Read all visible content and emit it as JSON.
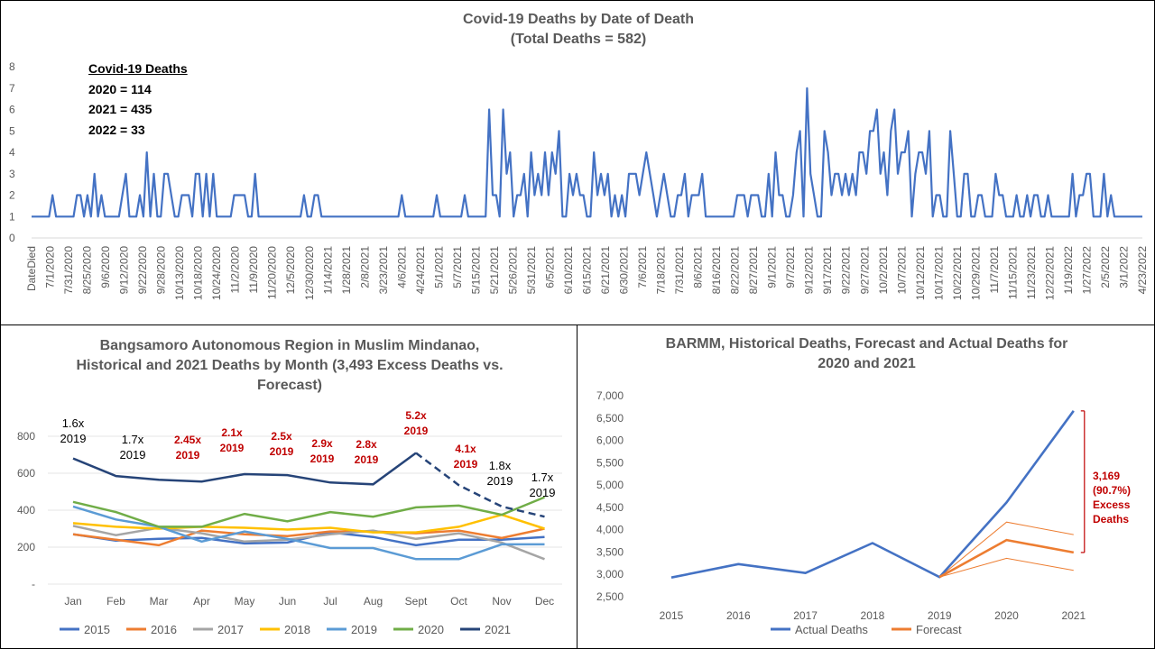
{
  "chart_data": [
    {
      "type": "line",
      "title": "Covid-19 Deaths by Date of Death",
      "subtitle": "(Total Deaths = 582)",
      "ylim": [
        0,
        8
      ],
      "y_ticks": [
        "0",
        "1",
        "2",
        "3",
        "4",
        "5",
        "6",
        "7",
        "8"
      ],
      "x_tick_labels": [
        "DateDied",
        "7/1/2020",
        "7/31/2020",
        "8/25/2020",
        "9/6/2020",
        "9/12/2020",
        "9/22/2020",
        "9/28/2020",
        "10/13/2020",
        "10/18/2020",
        "10/24/2020",
        "11/2/2020",
        "11/9/2020",
        "11/20/2020",
        "12/5/2020",
        "12/30/2020",
        "1/14/2021",
        "1/28/2021",
        "2/8/2021",
        "3/23/2021",
        "4/6/2021",
        "4/24/2021",
        "5/1/2021",
        "5/7/2021",
        "5/15/2021",
        "5/21/2021",
        "5/26/2021",
        "5/31/2021",
        "6/5/2021",
        "6/10/2021",
        "6/15/2021",
        "6/21/2021",
        "6/30/2021",
        "7/6/2021",
        "7/18/2021",
        "7/31/2021",
        "8/6/2021",
        "8/16/2021",
        "8/22/2021",
        "8/27/2021",
        "9/1/2021",
        "9/7/2021",
        "9/12/2021",
        "9/17/2021",
        "9/22/2021",
        "9/27/2021",
        "10/2/2021",
        "10/7/2021",
        "10/12/2021",
        "10/17/2021",
        "10/22/2021",
        "10/29/2021",
        "11/7/2021",
        "11/15/2021",
        "11/23/2021",
        "12/22/2021",
        "1/19/2022",
        "1/27/2022",
        "2/5/2022",
        "3/1/2022",
        "4/23/2022"
      ],
      "values": [
        1,
        1,
        1,
        1,
        1,
        1,
        2,
        1,
        1,
        1,
        1,
        1,
        1,
        2,
        2,
        1,
        2,
        1,
        3,
        1,
        2,
        1,
        1,
        1,
        1,
        1,
        2,
        3,
        1,
        1,
        1,
        2,
        1,
        4,
        1,
        3,
        1,
        1,
        3,
        3,
        2,
        1,
        1,
        2,
        2,
        2,
        1,
        3,
        3,
        1,
        3,
        1,
        3,
        1,
        1,
        1,
        1,
        1,
        2,
        2,
        2,
        2,
        1,
        1,
        3,
        1,
        1,
        1,
        1,
        1,
        1,
        1,
        1,
        1,
        1,
        1,
        1,
        1,
        2,
        1,
        1,
        2,
        2,
        1,
        1,
        1,
        1,
        1,
        1,
        1,
        1,
        1,
        1,
        1,
        1,
        1,
        1,
        1,
        1,
        1,
        1,
        1,
        1,
        1,
        1,
        1,
        2,
        1,
        1,
        1,
        1,
        1,
        1,
        1,
        1,
        1,
        2,
        1,
        1,
        1,
        1,
        1,
        1,
        1,
        2,
        1,
        1,
        1,
        1,
        1,
        1,
        6,
        2,
        2,
        1,
        6,
        3,
        4,
        1,
        2,
        2,
        3,
        1,
        4,
        2,
        3,
        2,
        4,
        2,
        4,
        3,
        5,
        1,
        1,
        3,
        2,
        3,
        2,
        2,
        1,
        1,
        4,
        2,
        3,
        2,
        3,
        1,
        2,
        1,
        2,
        1,
        3,
        3,
        3,
        2,
        3,
        4,
        3,
        2,
        1,
        2,
        3,
        2,
        1,
        1,
        2,
        2,
        3,
        1,
        2,
        2,
        2,
        3,
        1,
        1,
        1,
        1,
        1,
        1,
        1,
        1,
        1,
        2,
        2,
        2,
        1,
        2,
        2,
        2,
        1,
        1,
        3,
        1,
        4,
        2,
        2,
        1,
        1,
        2,
        4,
        5,
        1,
        7,
        3,
        2,
        1,
        1,
        5,
        4,
        2,
        3,
        3,
        2,
        3,
        2,
        3,
        2,
        4,
        4,
        3,
        5,
        5,
        6,
        3,
        4,
        2,
        5,
        6,
        3,
        4,
        4,
        5,
        1,
        3,
        4,
        4,
        3,
        5,
        1,
        2,
        2,
        1,
        1,
        5,
        3,
        1,
        1,
        3,
        3,
        1,
        1,
        2,
        2,
        1,
        1,
        1,
        3,
        2,
        2,
        1,
        1,
        1,
        2,
        1,
        1,
        2,
        1,
        2,
        2,
        1,
        1,
        2,
        1,
        1,
        1,
        1,
        1,
        1,
        3,
        1,
        2,
        2,
        3,
        3,
        1,
        1,
        1,
        3,
        1,
        2,
        1,
        1,
        1,
        1,
        1,
        1,
        1,
        1,
        1
      ],
      "annotation": {
        "title": "Covid-19 Deaths",
        "lines": [
          "2020 = 114",
          "2021 = 435",
          "2022 = 33"
        ]
      },
      "colors": {
        "line": "#4472c4"
      }
    },
    {
      "type": "line",
      "title_lines": [
        "Bangsamoro Autonomous Region in Muslim Mindanao,",
        "Historical and 2021 Deaths by Month (3,493 Excess Deaths vs.",
        "Forecast)"
      ],
      "categories": [
        "Jan",
        "Feb",
        "Mar",
        "Apr",
        "May",
        "Jun",
        "Jul",
        "Aug",
        "Sept",
        "Oct",
        "Nov",
        "Dec"
      ],
      "y_ticks": [
        "-",
        "200",
        "400",
        "600",
        "800"
      ],
      "ylim": [
        0,
        800
      ],
      "series": [
        {
          "name": "2015",
          "color": "#4472c4",
          "values": [
            270,
            235,
            245,
            250,
            220,
            225,
            280,
            255,
            210,
            240,
            240,
            255
          ]
        },
        {
          "name": "2016",
          "color": "#ed7d31",
          "values": [
            270,
            240,
            210,
            290,
            270,
            260,
            285,
            285,
            275,
            290,
            250,
            300
          ]
        },
        {
          "name": "2017",
          "color": "#a5a5a5",
          "values": [
            315,
            265,
            305,
            275,
            230,
            240,
            270,
            290,
            245,
            275,
            225,
            135
          ]
        },
        {
          "name": "2018",
          "color": "#ffc000",
          "values": [
            330,
            310,
            300,
            310,
            305,
            295,
            305,
            280,
            280,
            310,
            375,
            300
          ]
        },
        {
          "name": "2019",
          "color": "#5b9bd5",
          "values": [
            420,
            350,
            310,
            230,
            285,
            245,
            195,
            195,
            135,
            135,
            215,
            215
          ]
        },
        {
          "name": "2020",
          "color": "#70ad47",
          "values": [
            445,
            390,
            310,
            310,
            380,
            340,
            390,
            365,
            415,
            425,
            375,
            470
          ]
        },
        {
          "name": "2021",
          "color": "#264478",
          "values": [
            680,
            585,
            565,
            555,
            595,
            590,
            550,
            540,
            710,
            535,
            420,
            365
          ],
          "dashed_from_index": 8
        }
      ],
      "annotations": [
        {
          "text": [
            "1.6x",
            "2019"
          ],
          "red": false
        },
        {
          "text": [
            "1.7x",
            "2019"
          ],
          "red": false
        },
        {
          "text": [
            "2.45x",
            "2019"
          ],
          "red": true
        },
        {
          "text": [
            "2.1x",
            "2019"
          ],
          "red": true
        },
        {
          "text": [
            "2.5x",
            "2019"
          ],
          "red": true
        },
        {
          "text": [
            "2.9x",
            "2019"
          ],
          "red": true
        },
        {
          "text": [
            "2.8x",
            "2019"
          ],
          "red": true
        },
        {
          "text": [
            "5.2x",
            "2019"
          ],
          "red": true
        },
        {
          "text": [
            "4.1x",
            "2019"
          ],
          "red": true
        },
        {
          "text": [
            "1.8x",
            "2019"
          ],
          "red": false
        },
        {
          "text": [
            "1.7x",
            "2019"
          ],
          "red": false
        }
      ]
    },
    {
      "type": "line",
      "title_lines": [
        "BARMM, Historical Deaths, Forecast and Actual Deaths for",
        "2020 and 2021"
      ],
      "categories": [
        "2015",
        "2016",
        "2017",
        "2018",
        "2019",
        "2020",
        "2021"
      ],
      "y_ticks": [
        "2,500",
        "3,000",
        "3,500",
        "4,000",
        "4,500",
        "5,000",
        "5,500",
        "6,000",
        "6,500",
        "7,000"
      ],
      "ylim": [
        2500,
        7000
      ],
      "series": [
        {
          "name": "Actual Deaths",
          "color": "#4472c4",
          "values": [
            2930,
            3230,
            3030,
            3700,
            2940,
            4610,
            6660
          ]
        },
        {
          "name": "Forecast",
          "color": "#ed7d31",
          "values": [
            null,
            null,
            null,
            null,
            2940,
            3770,
            3490
          ]
        }
      ],
      "forecast_bounds": {
        "upper": [
          null,
          null,
          null,
          null,
          2940,
          4170,
          3890
        ],
        "lower": [
          null,
          null,
          null,
          null,
          2940,
          3360,
          3090
        ]
      },
      "callout": [
        "3,169",
        "(90.7%)",
        "Excess",
        "Deaths"
      ],
      "colors": {
        "callout": "#c00000"
      }
    }
  ]
}
